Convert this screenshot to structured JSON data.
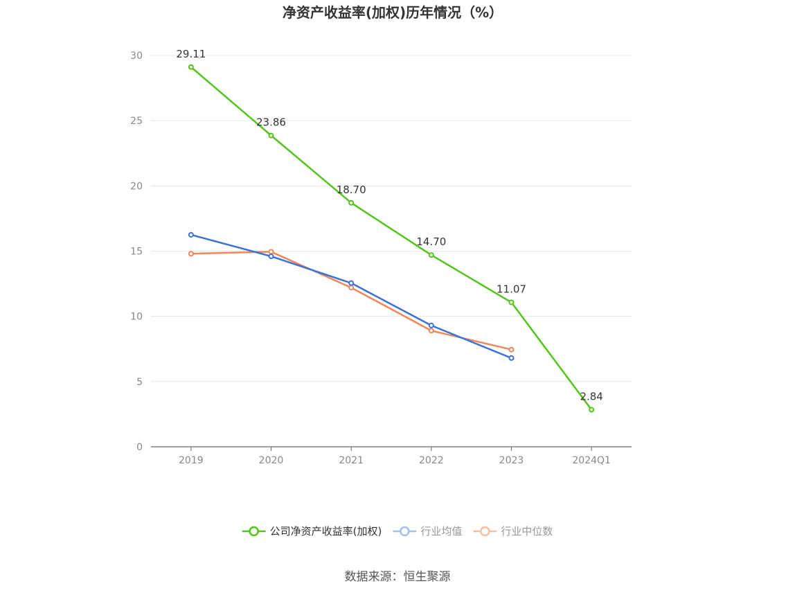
{
  "chart_data": {
    "type": "line",
    "title": "净资产收益率(加权)历年情况（%）",
    "categories": [
      "2019",
      "2020",
      "2021",
      "2022",
      "2023",
      "2024Q1"
    ],
    "series": [
      {
        "name": "公司净资产收益率(加权)",
        "color": "#52c41a",
        "values": [
          29.11,
          23.86,
          18.7,
          14.7,
          11.07,
          2.84
        ],
        "labels": [
          "29.11",
          "23.86",
          "18.70",
          "14.70",
          "11.07",
          "2.84"
        ],
        "show_labels": true
      },
      {
        "name": "行业均值",
        "color": "#3a72d8",
        "values": [
          16.25,
          14.6,
          12.55,
          9.3,
          6.8,
          null
        ],
        "show_labels": false
      },
      {
        "name": "行业中位数",
        "color": "#f0865a",
        "values": [
          14.8,
          14.95,
          12.2,
          8.9,
          7.45,
          null
        ],
        "show_labels": false
      }
    ],
    "yticks": [
      "0",
      "5",
      "10",
      "15",
      "20",
      "25",
      "30"
    ],
    "ylim": [
      0,
      30
    ],
    "grid": true,
    "legend_position": "bottom",
    "legend_colors": [
      "#52c41a",
      "#a3bff0",
      "#f6bea5"
    ],
    "legend_text_colors": [
      "#333333",
      "#999999",
      "#999999"
    ]
  },
  "source": "数据来源：恒生聚源"
}
